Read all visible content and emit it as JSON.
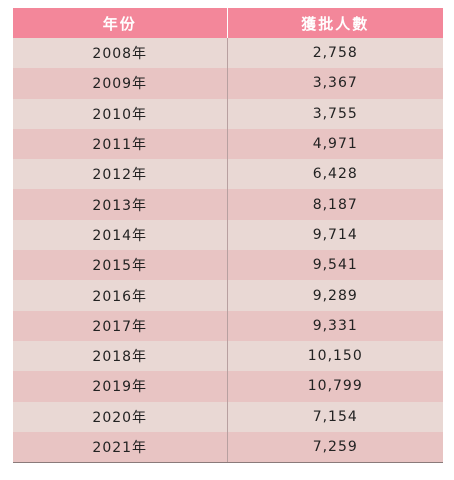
{
  "chart_data": {
    "type": "table",
    "columns": [
      "年份",
      "獲批人數"
    ],
    "rows": [
      {
        "year": "2008年",
        "value": "2,758"
      },
      {
        "year": "2009年",
        "value": "3,367"
      },
      {
        "year": "2010年",
        "value": "3,755"
      },
      {
        "year": "2011年",
        "value": "4,971"
      },
      {
        "year": "2012年",
        "value": "6,428"
      },
      {
        "year": "2013年",
        "value": "8,187"
      },
      {
        "year": "2014年",
        "value": "9,714"
      },
      {
        "year": "2015年",
        "value": "9,541"
      },
      {
        "year": "2016年",
        "value": "9,289"
      },
      {
        "year": "2017年",
        "value": "9,331"
      },
      {
        "year": "2018年",
        "value": "10,150"
      },
      {
        "year": "2019年",
        "value": "10,799"
      },
      {
        "year": "2020年",
        "value": "7,154"
      },
      {
        "year": "2021年",
        "value": "7,259"
      }
    ],
    "colors": {
      "header_bg": "#f3879a",
      "row_light": "#e9d8d4",
      "row_dark": "#e8c4c3"
    }
  }
}
